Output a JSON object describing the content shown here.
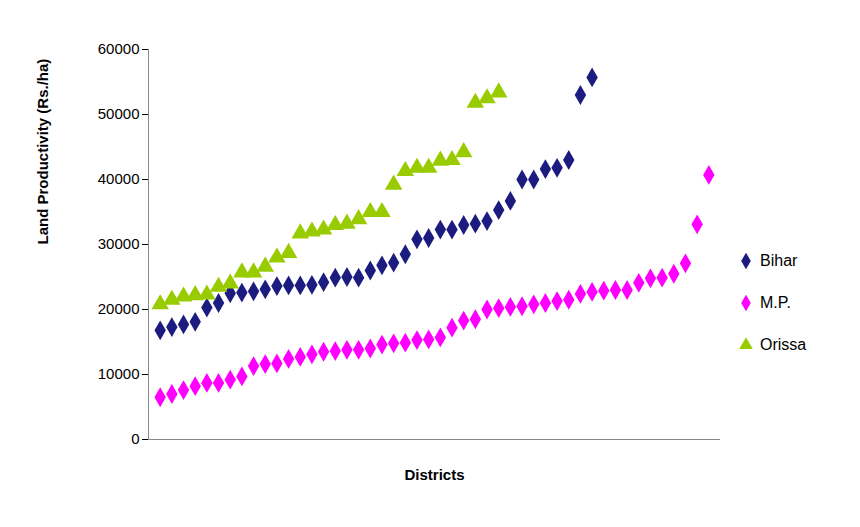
{
  "chart_data": {
    "type": "scatter",
    "x_label": "Districts",
    "y_label": "Land Productivity (Rs./ha)",
    "x": [
      1,
      2,
      3,
      4,
      5,
      6,
      7,
      8,
      9,
      10,
      11,
      12,
      13,
      14,
      15,
      16,
      17,
      18,
      19,
      20,
      21,
      22,
      23,
      24,
      25,
      26,
      27,
      28,
      29,
      30,
      31,
      32,
      33,
      34,
      35,
      36,
      37,
      38,
      39,
      40,
      41,
      42,
      43,
      44,
      45,
      46,
      47,
      48
    ],
    "xlim": [
      0,
      49
    ],
    "xticks": [],
    "ylim": [
      0,
      60000
    ],
    "yticks": [
      0,
      10000,
      20000,
      30000,
      40000,
      50000,
      60000
    ],
    "grid": false,
    "legend": "right",
    "tick_labels": "y",
    "series": [
      {
        "name": "Bihar",
        "color": "#1c1c80",
        "marker": "diamond",
        "values": [
          16800,
          17300,
          17700,
          18100,
          20300,
          21000,
          22500,
          22600,
          22800,
          23100,
          23600,
          23700,
          23700,
          23800,
          24200,
          24900,
          25000,
          24900,
          26000,
          26800,
          27200,
          28500,
          30800,
          31000,
          32300,
          32300,
          33000,
          33200,
          33600,
          35300,
          36700,
          40000,
          40000,
          41600,
          41800,
          43000,
          53000,
          55700,
          null,
          null,
          null,
          null,
          null,
          null,
          null,
          null,
          null,
          null
        ]
      },
      {
        "name": "M.P.",
        "color": "#ff00ff",
        "marker": "diamond",
        "values": [
          6500,
          7000,
          7600,
          8200,
          8700,
          8700,
          9200,
          9700,
          11300,
          11600,
          11700,
          12400,
          12700,
          13100,
          13500,
          13600,
          13800,
          13800,
          14000,
          14600,
          14800,
          14900,
          15300,
          15400,
          15700,
          17200,
          18300,
          18500,
          20000,
          20200,
          20400,
          20500,
          20800,
          21000,
          21300,
          21500,
          22400,
          22700,
          22900,
          23000,
          23000,
          24100,
          24800,
          24900,
          25500,
          27100,
          33100,
          40700
        ]
      },
      {
        "name": "Orissa",
        "color": "#99cc00",
        "marker": "triangle",
        "values": [
          20800,
          21500,
          22000,
          22200,
          22300,
          23500,
          24000,
          25700,
          25700,
          26600,
          28000,
          28700,
          31700,
          32000,
          32300,
          33000,
          33200,
          33900,
          35000,
          35000,
          39200,
          41300,
          41800,
          41800,
          42900,
          43000,
          44200,
          51800,
          52500,
          53400,
          null,
          null,
          null,
          null,
          null,
          null,
          null,
          null,
          null,
          null,
          null,
          null,
          null,
          null,
          null,
          null,
          null,
          null
        ]
      }
    ]
  }
}
